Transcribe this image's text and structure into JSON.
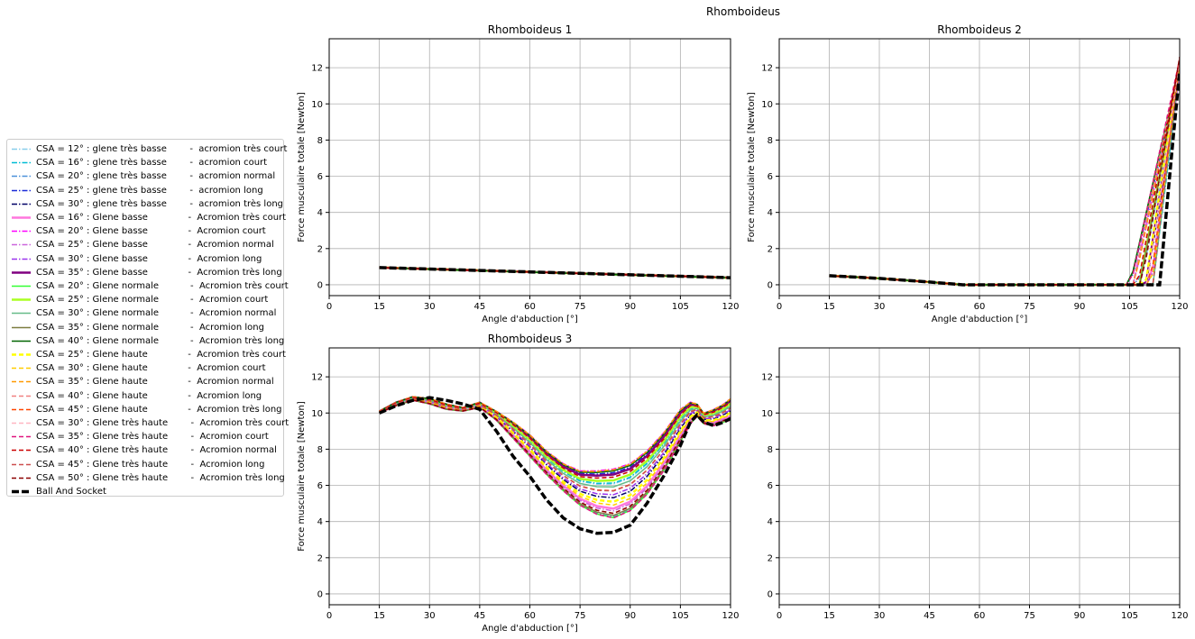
{
  "figure": {
    "suptitle": "Rhomboideus"
  },
  "chart_data": [
    {
      "type": "line",
      "title": "Rhomboideus 1",
      "xlabel": "Angle d'abduction [°]",
      "ylabel": "Force musculaire totale [Newton]",
      "xlim": [
        0,
        120
      ],
      "ylim": [
        -0.6,
        13.6
      ],
      "xticks": [
        0,
        15,
        30,
        45,
        60,
        75,
        90,
        105,
        120
      ],
      "yticks": [
        0,
        2,
        4,
        6,
        8,
        10,
        12
      ],
      "grid": true,
      "x": [
        15,
        30,
        45,
        60,
        75,
        90,
        105,
        120
      ],
      "envelope": {
        "variation": 0.03,
        "base": [
          0.95,
          0.87,
          0.79,
          0.71,
          0.63,
          0.55,
          0.47,
          0.39
        ]
      },
      "ball_and_socket": [
        0.95,
        0.87,
        0.79,
        0.71,
        0.63,
        0.55,
        0.47,
        0.39
      ]
    },
    {
      "type": "line",
      "title": "Rhomboideus 2",
      "xlabel": "Angle d'abduction [°]",
      "ylabel": "Force musculaire totale [Newton]",
      "xlim": [
        0,
        120
      ],
      "ylim": [
        -0.6,
        13.6
      ],
      "xticks": [
        0,
        15,
        30,
        45,
        60,
        75,
        90,
        105,
        120
      ],
      "yticks": [
        0,
        2,
        4,
        6,
        8,
        10,
        12
      ],
      "grid": true,
      "x": [
        15,
        30,
        45,
        55,
        60,
        75,
        90,
        104,
        106,
        108,
        110,
        112,
        114,
        116,
        118,
        120
      ],
      "envelope": {
        "onset_range": [
          105,
          112
        ],
        "base": [
          0.5,
          0.35,
          0.15,
          0.0,
          0.0,
          0.0,
          0.0,
          0.0,
          0.0,
          0.0,
          0.0,
          0.0,
          0.0,
          0.0,
          0.0,
          0.0
        ]
      },
      "ball_and_socket": [
        0.5,
        0.35,
        0.15,
        0.0,
        0.0,
        0.0,
        0.0,
        0.0,
        0.0,
        0.0,
        0.0,
        0.0,
        0.0,
        4.0,
        8.0,
        11.8
      ]
    },
    {
      "type": "line",
      "title": "Rhomboideus 3",
      "xlabel": "Angle d'abduction [°]",
      "ylabel": "Force musculaire totale [Newton]",
      "xlim": [
        0,
        120
      ],
      "ylim": [
        -0.6,
        13.6
      ],
      "xticks": [
        0,
        15,
        30,
        45,
        60,
        75,
        90,
        105,
        120
      ],
      "yticks": [
        0,
        2,
        4,
        6,
        8,
        10,
        12
      ],
      "grid": true,
      "x": [
        15,
        20,
        25,
        30,
        35,
        40,
        45,
        50,
        55,
        60,
        65,
        70,
        75,
        80,
        85,
        90,
        95,
        100,
        105,
        108,
        110,
        112,
        115,
        118,
        120
      ],
      "envelope_low": [
        10.0,
        10.4,
        10.7,
        10.5,
        10.2,
        10.1,
        10.3,
        9.6,
        8.6,
        7.6,
        6.6,
        5.7,
        4.9,
        4.4,
        4.2,
        4.6,
        5.5,
        6.8,
        8.4,
        9.4,
        9.8,
        9.4,
        9.3,
        9.5,
        9.6
      ],
      "envelope_high": [
        10.1,
        10.6,
        10.9,
        10.8,
        10.5,
        10.3,
        10.6,
        10.1,
        9.5,
        8.8,
        7.9,
        7.2,
        6.8,
        6.8,
        6.9,
        7.2,
        7.9,
        8.9,
        10.2,
        10.6,
        10.5,
        10.0,
        10.2,
        10.5,
        10.8
      ],
      "ball_and_socket": [
        10.0,
        10.4,
        10.7,
        10.85,
        10.7,
        10.5,
        10.2,
        9.0,
        7.6,
        6.5,
        5.2,
        4.2,
        3.6,
        3.35,
        3.4,
        3.8,
        5.0,
        6.5,
        8.2,
        9.5,
        9.9,
        9.5,
        9.3,
        9.5,
        9.7
      ]
    },
    {
      "type": "line",
      "title": "",
      "xlabel": "",
      "ylabel": "",
      "xlim": [
        0,
        120
      ],
      "ylim": [
        -0.6,
        13.6
      ],
      "xticks": [
        0,
        15,
        30,
        45,
        60,
        75,
        90,
        105,
        120
      ],
      "yticks": [
        0,
        2,
        4,
        6,
        8,
        10,
        12
      ],
      "grid": true
    }
  ],
  "legend": [
    {
      "label": "CSA = 12° : glene très basse        -  acromion très court",
      "color": "#87ceeb",
      "dash": "6,2,1.5,2",
      "width": 1.5
    },
    {
      "label": "CSA = 16° : glene très basse        -  acromion court",
      "color": "#00bcd4",
      "dash": "6,2,1.5,2",
      "width": 1.5
    },
    {
      "label": "CSA = 20° : glene très basse        -  acromion normal",
      "color": "#4a90d9",
      "dash": "6,2,1.5,2",
      "width": 1.5
    },
    {
      "label": "CSA = 25° : glene très basse        -  acromion long",
      "color": "#1a2bd8",
      "dash": "6,2,1.5,2",
      "width": 1.5
    },
    {
      "label": "CSA = 30° : glene très basse        -  acromion très long",
      "color": "#000066",
      "dash": "6,2,1.5,2",
      "width": 1.5
    },
    {
      "label": "CSA = 16° : Glene basse              -  Acromion très court",
      "color": "#ff77dd",
      "dash": "",
      "width": 2.5
    },
    {
      "label": "CSA = 20° : Glene basse              -  Acromion court",
      "color": "#ff00ff",
      "dash": "6,2,1.5,2",
      "width": 1.5
    },
    {
      "label": "CSA = 25° : Glene basse              -  Acromion normal",
      "color": "#cc66dd",
      "dash": "6,2,1.5,2",
      "width": 1.5
    },
    {
      "label": "CSA = 30° : Glene basse              -  Acromion long",
      "color": "#9933ee",
      "dash": "6,2,1.5,2",
      "width": 1.5
    },
    {
      "label": "CSA = 35° : Glene basse              -  Acromion très long",
      "color": "#800080",
      "dash": "",
      "width": 2.5
    },
    {
      "label": "CSA = 20° : Glene normale           -  Acromion très court",
      "color": "#33ff33",
      "dash": "",
      "width": 1.5
    },
    {
      "label": "CSA = 25° : Glene normale           -  Acromion court",
      "color": "#aaff22",
      "dash": "",
      "width": 2.5
    },
    {
      "label": "CSA = 30° : Glene normale           -  Acromion normal",
      "color": "#66bb88",
      "dash": "",
      "width": 1.5
    },
    {
      "label": "CSA = 35° : Glene normale           -  Acromion long",
      "color": "#7d7d40",
      "dash": "",
      "width": 1.5
    },
    {
      "label": "CSA = 40° : Glene normale           -  Acromion très long",
      "color": "#006400",
      "dash": "",
      "width": 1.5
    },
    {
      "label": "CSA = 25° : Glene haute              -  Acromion très court",
      "color": "#ffff00",
      "dash": "5,3",
      "width": 2.5
    },
    {
      "label": "CSA = 30° : Glene haute              -  Acromion court",
      "color": "#ffcc00",
      "dash": "5,3",
      "width": 1.5
    },
    {
      "label": "CSA = 35° : Glene haute              -  Acromion normal",
      "color": "#ff9900",
      "dash": "5,3",
      "width": 1.5
    },
    {
      "label": "CSA = 40° : Glene haute              -  Acromion long",
      "color": "#f08080",
      "dash": "5,3",
      "width": 1.5
    },
    {
      "label": "CSA = 45° : Glene haute              -  Acromion très long",
      "color": "#ff4500",
      "dash": "5,3",
      "width": 1.5
    },
    {
      "label": "CSA = 30° : Glene très haute        -  Acromion très court",
      "color": "#ffb6c1",
      "dash": "5,3",
      "width": 1.5
    },
    {
      "label": "CSA = 35° : Glene très haute        -  Acromion court",
      "color": "#e0147f",
      "dash": "5,3",
      "width": 1.5
    },
    {
      "label": "CSA = 40° : Glene très haute        -  Acromion normal",
      "color": "#cc0000",
      "dash": "5,3",
      "width": 1.5
    },
    {
      "label": "CSA = 45° : Glene très haute        -  Acromion long",
      "color": "#cd4f4f",
      "dash": "5,3",
      "width": 1.5
    },
    {
      "label": "CSA = 50° : Glene très haute        -  Acromion très long",
      "color": "#8b0000",
      "dash": "5,3",
      "width": 1.5
    },
    {
      "label": "Ball And Socket",
      "color": "#000000",
      "dash": "8,3",
      "width": 3.5
    }
  ]
}
